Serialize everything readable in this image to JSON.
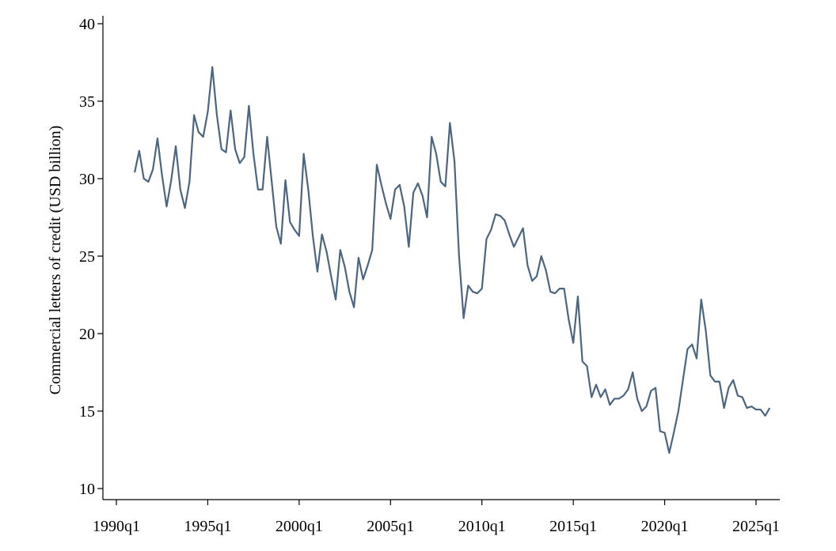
{
  "chart_data": {
    "type": "line",
    "title": "",
    "xlabel": "",
    "ylabel": "Commercial letters of credit (USD billion)",
    "ylim": [
      10,
      40
    ],
    "yticks": [
      10,
      15,
      20,
      25,
      30,
      35,
      40
    ],
    "xticks": [
      "1990q1",
      "1995q1",
      "2000q1",
      "2005q1",
      "2010q1",
      "2015q1",
      "2020q1",
      "2025q1"
    ],
    "grid": false,
    "legend": "none",
    "line_color": "#4a6680",
    "series": [
      {
        "start": "1991q1",
        "frequency": "quarterly",
        "values": [
          30.4,
          31.8,
          30.0,
          29.8,
          30.6,
          32.6,
          30.2,
          28.2,
          29.9,
          32.1,
          29.3,
          28.1,
          29.8,
          34.1,
          33.0,
          32.7,
          34.3,
          37.2,
          34.1,
          31.9,
          31.7,
          34.4,
          31.9,
          31.0,
          31.4,
          34.7,
          31.6,
          29.3,
          29.3,
          32.7,
          29.8,
          26.9,
          25.8,
          29.9,
          27.2,
          26.7,
          26.3,
          31.6,
          29.3,
          26.3,
          24.0,
          26.4,
          25.3,
          23.7,
          22.2,
          25.4,
          24.3,
          22.7,
          21.7,
          24.9,
          23.5,
          24.4,
          25.4,
          30.9,
          29.6,
          28.4,
          27.4,
          29.3,
          29.6,
          28.2,
          25.6,
          29.1,
          29.7,
          28.9,
          27.5,
          32.7,
          31.6,
          29.8,
          29.5,
          33.6,
          31.1,
          25.0,
          21.0,
          23.1,
          22.7,
          22.6,
          22.9,
          26.1,
          26.7,
          27.7,
          27.6,
          27.3,
          26.4,
          25.6,
          26.2,
          26.8,
          24.4,
          23.4,
          23.7,
          25.0,
          24.1,
          22.7,
          22.6,
          22.9,
          22.9,
          20.9,
          19.4,
          22.4,
          18.2,
          17.9,
          15.9,
          16.7,
          15.9,
          16.4,
          15.4,
          15.8,
          15.8,
          16.0,
          16.4,
          17.5,
          15.8,
          15.0,
          15.3,
          16.3,
          16.5,
          13.7,
          13.6,
          12.3,
          13.6,
          15.0,
          17.0,
          19.0,
          19.3,
          18.4,
          22.2,
          20.2,
          17.3,
          16.9,
          16.9,
          15.2,
          16.5,
          17.0,
          16.0,
          15.9,
          15.2,
          15.3,
          15.1,
          15.1,
          14.7,
          15.2
        ]
      }
    ]
  }
}
